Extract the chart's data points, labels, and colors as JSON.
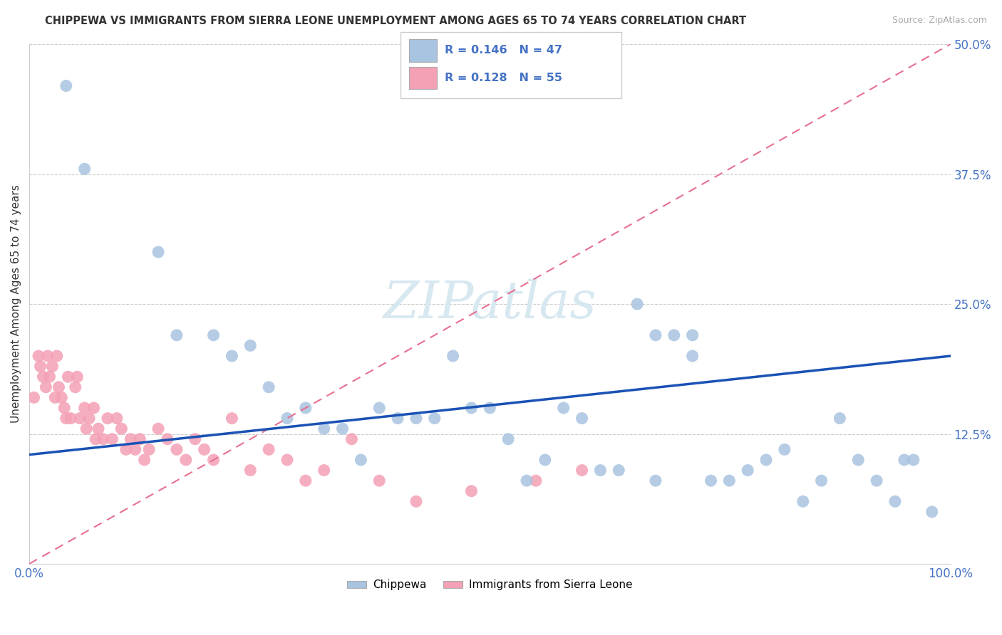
{
  "title": "CHIPPEWA VS IMMIGRANTS FROM SIERRA LEONE UNEMPLOYMENT AMONG AGES 65 TO 74 YEARS CORRELATION CHART",
  "source": "Source: ZipAtlas.com",
  "ylabel": "Unemployment Among Ages 65 to 74 years",
  "xlim": [
    0,
    100
  ],
  "ylim": [
    0,
    50
  ],
  "xtick_labels": [
    "0.0%",
    "100.0%"
  ],
  "ytick_labels": [
    "12.5%",
    "25.0%",
    "37.5%",
    "50.0%"
  ],
  "ytick_values": [
    12.5,
    25.0,
    37.5,
    50.0
  ],
  "xtick_values": [
    0,
    100
  ],
  "legend_r1": "R = 0.146",
  "legend_n1": "N = 47",
  "legend_r2": "R = 0.128",
  "legend_n2": "N = 55",
  "chippewa_color": "#a8c4e0",
  "sierra_leone_color": "#f4a0b5",
  "trend_blue_color": "#1a52b5",
  "trend_pink_color": "#e87090",
  "label_color_blue": "#4472c4",
  "label_color_pink": "#e87090",
  "watermark_color": "#d8e8f0",
  "chippewa_x": [
    4,
    6,
    14,
    16,
    20,
    22,
    26,
    28,
    30,
    34,
    36,
    38,
    40,
    42,
    46,
    48,
    50,
    54,
    56,
    58,
    60,
    62,
    66,
    68,
    70,
    72,
    76,
    80,
    84,
    88,
    92,
    95,
    98,
    24,
    32,
    44,
    52,
    64,
    74,
    78,
    82,
    86,
    90,
    94,
    96,
    68,
    72
  ],
  "chippewa_y": [
    46,
    38,
    30,
    22,
    22,
    20,
    17,
    14,
    15,
    13,
    10,
    15,
    14,
    14,
    20,
    15,
    15,
    8,
    10,
    15,
    14,
    9,
    25,
    8,
    22,
    20,
    8,
    10,
    6,
    14,
    8,
    10,
    5,
    21,
    13,
    14,
    12,
    9,
    8,
    9,
    11,
    8,
    10,
    6,
    10,
    22,
    22
  ],
  "sierra_leone_x": [
    0.5,
    1,
    1.2,
    1.5,
    1.8,
    2,
    2.2,
    2.5,
    2.8,
    3,
    3.2,
    3.5,
    3.8,
    4,
    4.2,
    4.5,
    5,
    5.2,
    5.5,
    6,
    6.2,
    6.5,
    7,
    7.2,
    7.5,
    8,
    8.5,
    9,
    9.5,
    10,
    10.5,
    11,
    11.5,
    12,
    12.5,
    13,
    14,
    15,
    16,
    17,
    18,
    19,
    20,
    22,
    24,
    26,
    28,
    30,
    32,
    35,
    38,
    42,
    48,
    55,
    60
  ],
  "sierra_leone_y": [
    16,
    20,
    19,
    18,
    17,
    20,
    18,
    19,
    16,
    20,
    17,
    16,
    15,
    14,
    18,
    14,
    17,
    18,
    14,
    15,
    13,
    14,
    15,
    12,
    13,
    12,
    14,
    12,
    14,
    13,
    11,
    12,
    11,
    12,
    10,
    11,
    13,
    12,
    11,
    10,
    12,
    11,
    10,
    14,
    9,
    11,
    10,
    8,
    9,
    12,
    8,
    6,
    7,
    8,
    9
  ],
  "chip_trend_x0": 0,
  "chip_trend_y0": 10.5,
  "chip_trend_x1": 100,
  "chip_trend_y1": 20.0,
  "sl_trend_x0": 0,
  "sl_trend_y0": 0,
  "sl_trend_x1": 100,
  "sl_trend_y1": 50
}
